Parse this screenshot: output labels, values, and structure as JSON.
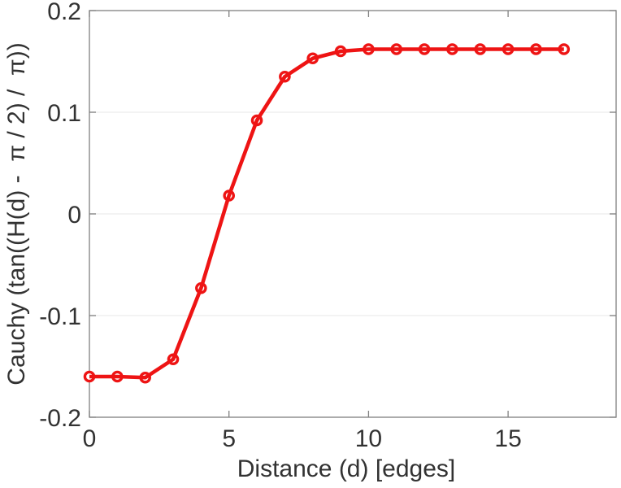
{
  "figure": {
    "background": "#ffffff"
  },
  "chart_data": {
    "type": "line",
    "title": "",
    "xlabel": "Distance (d) [edges]",
    "ylabel": "Cauchy (tan((H(d) -  π / 2) /  π))",
    "x": [
      0,
      1,
      2,
      3,
      4,
      5,
      6,
      7,
      8,
      9,
      10,
      11,
      12,
      13,
      14,
      15,
      16,
      17
    ],
    "y": [
      -0.16,
      -0.16,
      -0.161,
      -0.143,
      -0.073,
      0.018,
      0.092,
      0.135,
      0.153,
      0.16,
      0.162,
      0.162,
      0.162,
      0.162,
      0.162,
      0.162,
      0.162,
      0.162
    ],
    "xlim": [
      0,
      18.87
    ],
    "ylim": [
      -0.2,
      0.2
    ],
    "xticks": [
      0,
      5,
      10,
      15
    ],
    "xtick_labels": [
      "0",
      "5",
      "10",
      "15"
    ],
    "yticks": [
      -0.2,
      -0.1,
      0,
      0.1,
      0.2
    ],
    "ytick_labels": [
      "-0.2",
      "-0.1",
      "0",
      "0.1",
      "0.2"
    ],
    "grid": "horizontal-only",
    "legend_position": "none",
    "marker": "open-circle",
    "line_color": "#ee1414",
    "marker_face_color": "#ffffff",
    "axis_color": "#808080",
    "grid_color": "#efefef",
    "text_color": "#323232"
  }
}
